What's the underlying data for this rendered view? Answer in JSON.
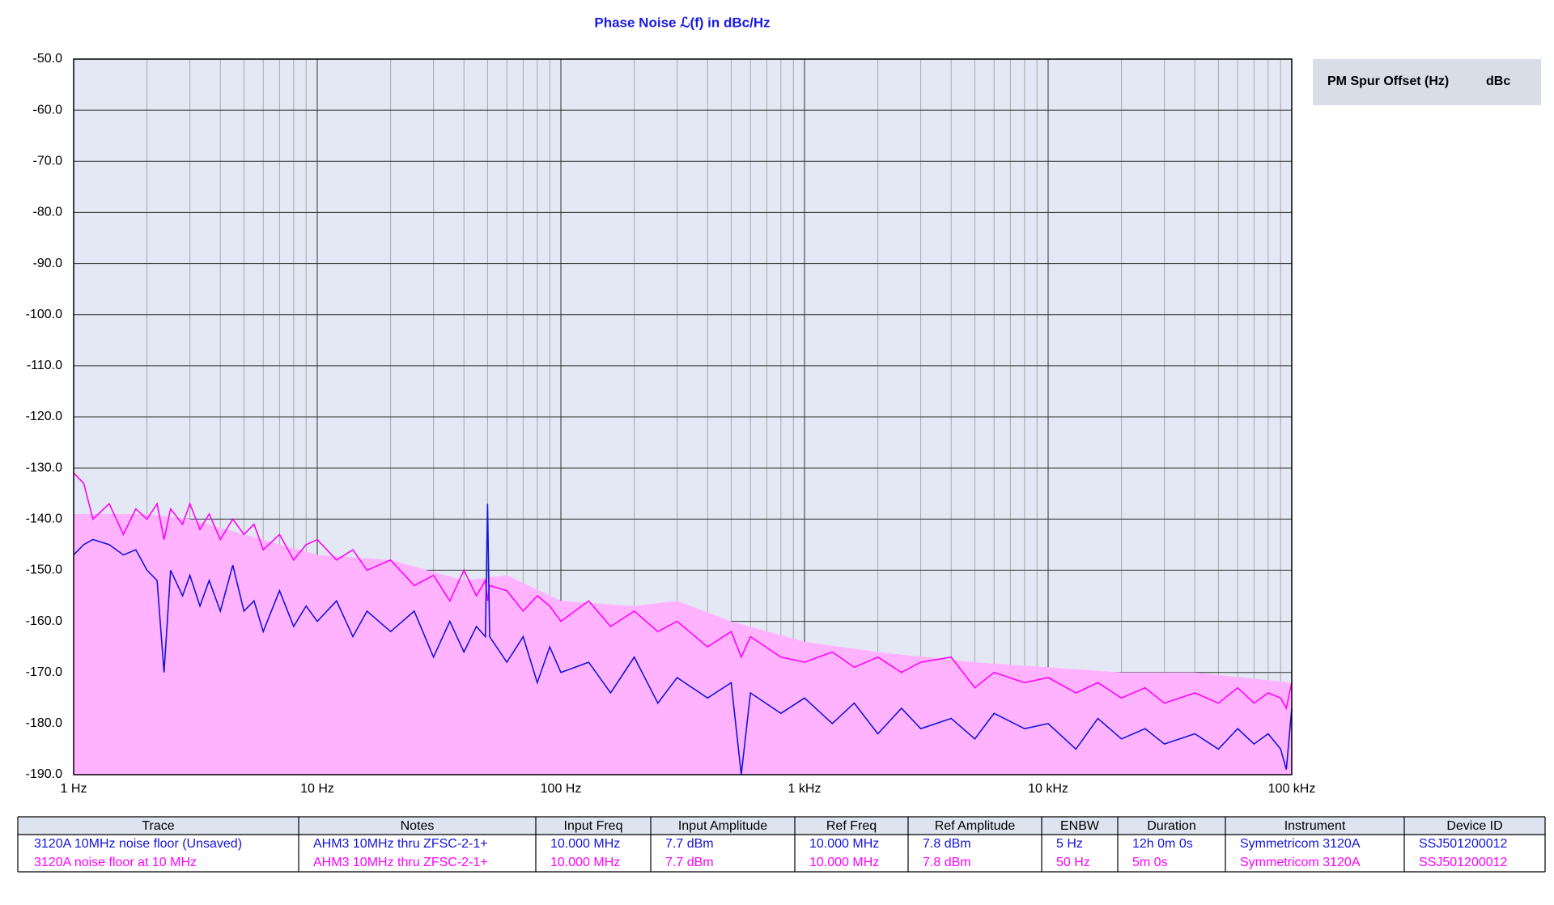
{
  "chart_data": {
    "type": "line",
    "title": "Phase Noise ℒ(f) in dBc/Hz",
    "log_x": true,
    "grid": true,
    "plot_background": "#e3e8f4",
    "xlim": [
      1,
      100000
    ],
    "xticks": [
      {
        "value": 1,
        "label": "1 Hz"
      },
      {
        "value": 10,
        "label": "10 Hz"
      },
      {
        "value": 100,
        "label": "100 Hz"
      },
      {
        "value": 1000,
        "label": "1 kHz"
      },
      {
        "value": 10000,
        "label": "10 kHz"
      },
      {
        "value": 100000,
        "label": "100 kHz"
      }
    ],
    "xminorticks": [
      2,
      3,
      4,
      5,
      6,
      7,
      8,
      9,
      20,
      30,
      40,
      50,
      60,
      70,
      80,
      90,
      200,
      300,
      400,
      500,
      600,
      700,
      800,
      900,
      2000,
      3000,
      4000,
      5000,
      6000,
      7000,
      8000,
      9000,
      20000,
      30000,
      40000,
      50000,
      60000,
      70000,
      80000,
      90000
    ],
    "ylim": [
      -190,
      -50
    ],
    "yticks": [
      {
        "value": -50,
        "label": "-50.0"
      },
      {
        "value": -60,
        "label": "-60.0"
      },
      {
        "value": -70,
        "label": "-70.0"
      },
      {
        "value": -80,
        "label": "-80.0"
      },
      {
        "value": -90,
        "label": "-90.0"
      },
      {
        "value": -100,
        "label": "-100.0"
      },
      {
        "value": -110,
        "label": "-110.0"
      },
      {
        "value": -120,
        "label": "-120.0"
      },
      {
        "value": -130,
        "label": "-130.0"
      },
      {
        "value": -140,
        "label": "-140.0"
      },
      {
        "value": -150,
        "label": "-150.0"
      },
      {
        "value": -160,
        "label": "-160.0"
      },
      {
        "value": -170,
        "label": "-170.0"
      },
      {
        "value": -180,
        "label": "-180.0"
      },
      {
        "value": -190,
        "label": "-190.0"
      }
    ],
    "x": [
      1,
      1.1,
      1.2,
      1.4,
      1.6,
      1.8,
      2,
      2.2,
      2.35,
      2.5,
      2.8,
      3,
      3.3,
      3.6,
      4,
      4.5,
      5,
      5.5,
      6,
      7,
      8,
      9,
      10,
      12,
      14,
      16,
      20,
      25,
      30,
      35,
      40,
      45,
      49,
      50,
      51,
      60,
      70,
      80,
      90,
      100,
      130,
      160,
      200,
      250,
      300,
      400,
      500,
      550,
      600,
      800,
      1000,
      1300,
      1600,
      2000,
      2500,
      3000,
      4000,
      5000,
      6000,
      8000,
      10000,
      13000,
      16000,
      20000,
      25000,
      30000,
      40000,
      50000,
      60000,
      70000,
      80000,
      90000,
      95000,
      100000
    ],
    "series": [
      {
        "name": "3120A  10MHz  noise floor  (Unsaved)",
        "color": "#1414dc",
        "values": [
          -147,
          -145,
          -144,
          -145,
          -147,
          -146,
          -150,
          -152,
          -170,
          -150,
          -155,
          -151,
          -157,
          -152,
          -158,
          -149,
          -158,
          -156,
          -162,
          -154,
          -161,
          -157,
          -160,
          -156,
          -163,
          -158,
          -162,
          -158,
          -167,
          -160,
          -166,
          -161,
          -163,
          -137,
          -163,
          -168,
          -163,
          -172,
          -165,
          -170,
          -168,
          -174,
          -167,
          -176,
          -171,
          -175,
          -172,
          -190,
          -174,
          -178,
          -175,
          -180,
          -176,
          -182,
          -177,
          -181,
          -179,
          -183,
          -178,
          -181,
          -180,
          -185,
          -179,
          -183,
          -181,
          -184,
          -182,
          -185,
          -181,
          -184,
          -182,
          -185,
          -189,
          -177
        ]
      },
      {
        "name": "3120A noise floor at 10 MHz",
        "color": "#ff00ff",
        "values": [
          -131,
          -133,
          -140,
          -137,
          -143,
          -138,
          -140,
          -137,
          -144,
          -138,
          -141,
          -137,
          -142,
          -139,
          -144,
          -140,
          -143,
          -141,
          -146,
          -143,
          -148,
          -145,
          -144,
          -148,
          -146,
          -150,
          -148,
          -153,
          -151,
          -156,
          -150,
          -155,
          -152,
          -156,
          -153,
          -154,
          -158,
          -155,
          -157,
          -160,
          -156,
          -161,
          -158,
          -162,
          -160,
          -165,
          -162,
          -167,
          -163,
          -167,
          -168,
          -166,
          -169,
          -167,
          -170,
          -168,
          -167,
          -173,
          -170,
          -172,
          -171,
          -174,
          -172,
          -175,
          -173,
          -176,
          -174,
          -176,
          -173,
          -176,
          -174,
          -175,
          -177,
          -172
        ]
      },
      {
        "kind": "area",
        "color": "#ffb3ff",
        "x": [
          1,
          2,
          3,
          5,
          10,
          20,
          40,
          60,
          100,
          200,
          300,
          500,
          1000,
          2000,
          5000,
          10000,
          20000,
          40000,
          100000
        ],
        "values": [
          -139,
          -139,
          -140,
          -143,
          -147,
          -148,
          -152,
          -151,
          -156,
          -157,
          -156,
          -160,
          -164,
          -166,
          -168,
          -169,
          -170,
          -170,
          -172
        ]
      }
    ],
    "spur_table": {
      "columns": [
        "PM Spur Offset (Hz)",
        "dBc"
      ]
    },
    "trace_table": {
      "columns": [
        "Trace",
        "Notes",
        "Input Freq",
        "Input Amplitude",
        "Ref Freq",
        "Ref Amplitude",
        "ENBW",
        "Duration",
        "Instrument",
        "Device ID"
      ],
      "rows": [
        [
          "AHM3 10MHz thru ZFSC-2-1+",
          "10.000 MHz",
          "7.7 dBm",
          "10.000 MHz",
          "7.8 dBm",
          "5 Hz",
          "12h 0m 0s",
          "Symmetricom 3120A",
          "SSJ501200012"
        ],
        [
          "AHM3 10MHz thru ZFSC-2-1+",
          "10.000 MHz",
          "7.7 dBm",
          "10.000 MHz",
          "7.8 dBm",
          "50 Hz",
          "5m 0s",
          "Symmetricom 3120A",
          "SSJ501200012"
        ]
      ]
    }
  }
}
